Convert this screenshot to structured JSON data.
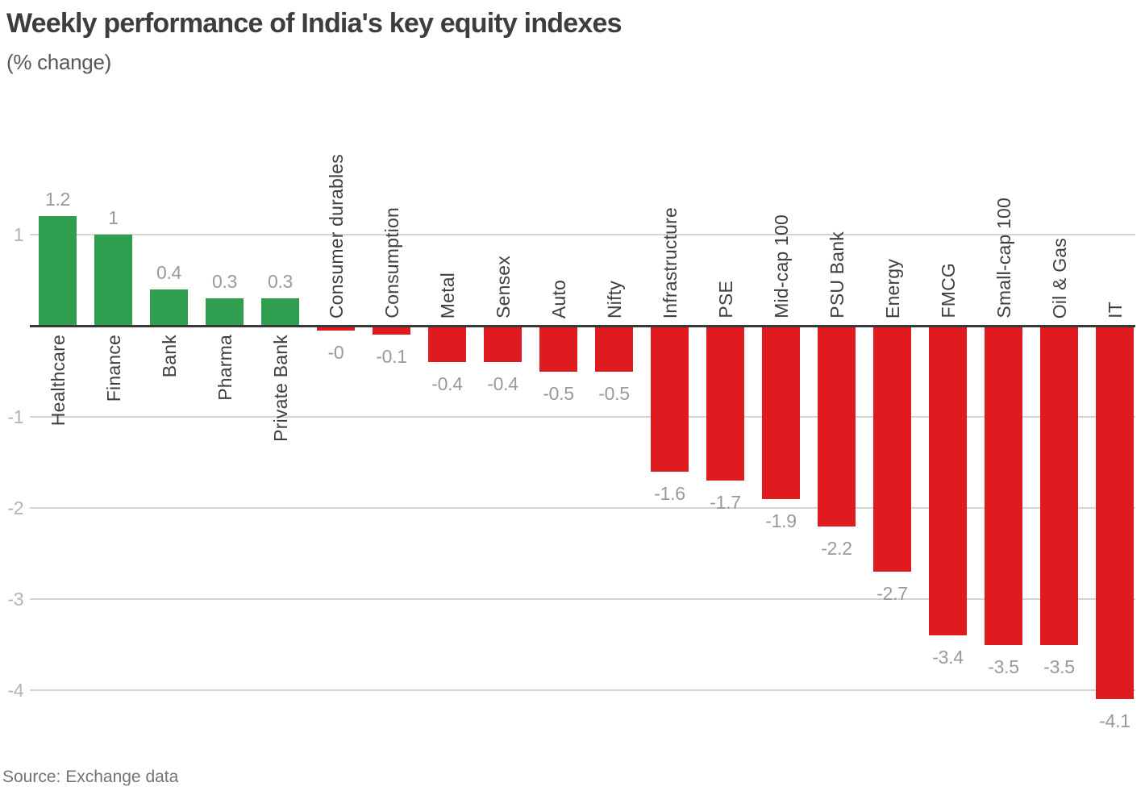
{
  "header": {
    "title": "Weekly performance of India's key equity indexes",
    "subtitle": "(% change)"
  },
  "footer": {
    "source": "Source: Exchange data"
  },
  "colors": {
    "positive_bar": "#2f9e4f",
    "negative_bar": "#e01b1f",
    "grid_line": "#d4d4d4",
    "zero_axis": "#383838",
    "tick_text": "#b3b3b3",
    "value_text": "#9a9a9a",
    "category_text": "#3f3f3f",
    "title_text": "#3d3d3d"
  },
  "chart_data": {
    "type": "bar",
    "title": "Weekly performance of India's key equity indexes",
    "subtitle": "(% change)",
    "xlabel": "",
    "ylabel": "% change",
    "categories": [
      "Healthcare",
      "Finance",
      "Bank",
      "Pharma",
      "Private Bank",
      "Consumer durables",
      "Consumption",
      "Metal",
      "Sensex",
      "Auto",
      "Nifty",
      "Infrastructure",
      "PSE",
      "Mid-cap 100",
      "PSU Bank",
      "Energy",
      "FMCG",
      "Small-cap 100",
      "Oil & Gas",
      "IT"
    ],
    "values": [
      1.2,
      1,
      0.4,
      0.3,
      0.3,
      -0.05,
      -0.1,
      -0.4,
      -0.4,
      -0.5,
      -0.5,
      -1.6,
      -1.7,
      -1.9,
      -2.2,
      -2.7,
      -3.4,
      -3.5,
      -3.5,
      -4.1
    ],
    "value_labels": [
      "1.2",
      "1",
      "0.4",
      "0.3",
      "0.3",
      "-0",
      "-0.1",
      "-0.4",
      "-0.4",
      "-0.5",
      "-0.5",
      "-1.6",
      "-1.7",
      "-1.9",
      "-2.2",
      "-2.7",
      "-3.4",
      "-3.5",
      "-3.5",
      "-4.1"
    ],
    "y_ticks": [
      1,
      -1,
      -2,
      -3,
      -4
    ],
    "ylim": [
      -4.6,
      1.5
    ],
    "grid": true,
    "legend": false,
    "source": "Source: Exchange data"
  }
}
